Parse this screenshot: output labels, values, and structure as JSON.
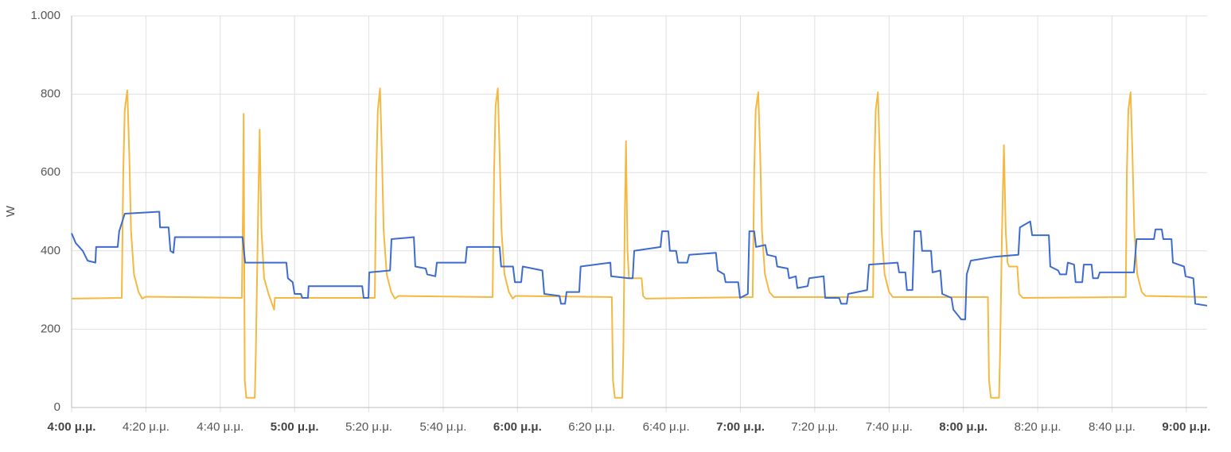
{
  "chart_data": {
    "type": "line",
    "y_label": "W",
    "xlim": [
      0,
      305.6
    ],
    "ylim": [
      0,
      1000
    ],
    "yticks": [
      0,
      200,
      400,
      600,
      800,
      {
        "value": 1000,
        "label": "1.000"
      }
    ],
    "xticks": [
      {
        "value": 0,
        "label": "4:00 μ.μ.",
        "bold": true
      },
      {
        "value": 20,
        "label": "4:20 μ.μ."
      },
      {
        "value": 40,
        "label": "4:40 μ.μ."
      },
      {
        "value": 60,
        "label": "5:00 μ.μ.",
        "bold": true
      },
      {
        "value": 80,
        "label": "5:20 μ.μ."
      },
      {
        "value": 100,
        "label": "5:40 μ.μ."
      },
      {
        "value": 120,
        "label": "6:00 μ.μ.",
        "bold": true
      },
      {
        "value": 140,
        "label": "6:20 μ.μ."
      },
      {
        "value": 160,
        "label": "6:40 μ.μ."
      },
      {
        "value": 180,
        "label": "7:00 μ.μ.",
        "bold": true
      },
      {
        "value": 200,
        "label": "7:20 μ.μ."
      },
      {
        "value": 220,
        "label": "7:40 μ.μ."
      },
      {
        "value": 240,
        "label": "8:00 μ.μ.",
        "bold": true
      },
      {
        "value": 260,
        "label": "8:20 μ.μ."
      },
      {
        "value": 280,
        "label": "8:40 μ.μ."
      },
      {
        "value": 300,
        "label": "9:00 μ.μ.",
        "bold": true
      }
    ],
    "grid": true,
    "series": [
      {
        "color": "#f4b942",
        "x": [
          0,
          13.5,
          13.9,
          14.3,
          15,
          15.5,
          16,
          16.8,
          18,
          19,
          20,
          45.8,
          46.1,
          46.3,
          46.6,
          47,
          49.3,
          49.6,
          50.2,
          50.6,
          51.1,
          51.8,
          53,
          54.5,
          54.7,
          81.6,
          82,
          82.4,
          83,
          83.5,
          84,
          84.8,
          86,
          87,
          88,
          113.3,
          113.7,
          114.1,
          114.7,
          115.2,
          115.7,
          116.5,
          117.7,
          118.7,
          119.5,
          145.4,
          145.7,
          146.2,
          148.2,
          148.5,
          148.9,
          149.2,
          149.6,
          150,
          153.4,
          153.8,
          154.5,
          183.3,
          183.7,
          184.1,
          184.8,
          185.3,
          185.8,
          186.6,
          187.8,
          189,
          215.7,
          216,
          216.4,
          217,
          217.5,
          218,
          218.8,
          220,
          221,
          246.6,
          246.9,
          247.4,
          249.6,
          249.9,
          250.4,
          250.9,
          251.4,
          251.9,
          252.3,
          254.5,
          255,
          256,
          283.7,
          284,
          284.4,
          285,
          285.5,
          286,
          286.8,
          288,
          289,
          305.6
        ],
        "values": [
          278,
          280,
          600,
          760,
          810,
          650,
          450,
          340,
          295,
          278,
          283,
          280,
          500,
          750,
          70,
          25,
          25,
          150,
          500,
          710,
          450,
          330,
          290,
          250,
          280,
          280,
          600,
          760,
          815,
          650,
          450,
          340,
          295,
          278,
          285,
          282,
          600,
          770,
          815,
          650,
          450,
          340,
          295,
          278,
          285,
          282,
          70,
          25,
          25,
          150,
          500,
          680,
          400,
          330,
          330,
          285,
          278,
          282,
          600,
          760,
          805,
          650,
          450,
          340,
          295,
          282,
          282,
          600,
          760,
          805,
          650,
          450,
          340,
          295,
          282,
          282,
          70,
          25,
          25,
          150,
          450,
          670,
          450,
          370,
          360,
          360,
          290,
          280,
          282,
          600,
          760,
          805,
          650,
          450,
          340,
          295,
          285,
          282
        ]
      },
      {
        "color": "#3d6bce",
        "x": [
          0,
          1.1,
          3.0,
          4.3,
          6.4,
          6.6,
          12.4,
          12.8,
          14.3,
          23.6,
          23.8,
          26.1,
          26.6,
          27.4,
          27.8,
          46.0,
          46.7,
          57.8,
          58.2,
          59.5,
          60.0,
          61.7,
          62.1,
          63.6,
          63.8,
          78.2,
          78.6,
          79.9,
          80.1,
          85.7,
          86.1,
          92.1,
          92.5,
          95.3,
          95.7,
          97.9,
          98.3,
          106.0,
          106.4,
          115.2,
          115.6,
          118.8,
          119.3,
          121.0,
          121.4,
          126.7,
          127.2,
          131.3,
          131.7,
          132.8,
          133.2,
          136.6,
          137.0,
          145.0,
          145.2,
          149.9,
          151.0,
          151.4,
          158.5,
          158.9,
          160.6,
          161.0,
          162.7,
          163.2,
          165.7,
          166.2,
          173.4,
          173.9,
          175.6,
          176.0,
          179.4,
          179.9,
          182.0,
          182.4,
          183.7,
          184.2,
          186.7,
          187.2,
          189.5,
          189.9,
          192.7,
          193.1,
          194.9,
          195.3,
          198.1,
          198.5,
          202.4,
          202.8,
          206.6,
          207.1,
          208.6,
          209.0,
          214.1,
          214.6,
          222.3,
          222.7,
          224.4,
          224.8,
          226.3,
          226.8,
          228.5,
          228.9,
          231.3,
          231.7,
          233.8,
          234.3,
          236.8,
          237.3,
          239.0,
          239.4,
          240.5,
          240.9,
          242.0,
          248.4,
          254.8,
          255.2,
          258.0,
          258.5,
          263.0,
          263.4,
          265.5,
          266.0,
          267.7,
          268.1,
          269.8,
          270.2,
          272.0,
          272.4,
          274.5,
          274.9,
          276.2,
          276.7,
          285.9,
          286.6,
          291.3,
          291.7,
          293.4,
          293.8,
          296.0,
          296.4,
          299.4,
          299.8,
          301.9,
          302.4,
          305.6
        ],
        "values": [
          445,
          420,
          400,
          375,
          370,
          410,
          410,
          450,
          495,
          500,
          460,
          460,
          400,
          395,
          435,
          435,
          370,
          370,
          330,
          320,
          290,
          290,
          280,
          280,
          310,
          310,
          280,
          280,
          345,
          350,
          430,
          435,
          360,
          355,
          340,
          335,
          370,
          370,
          410,
          410,
          360,
          360,
          320,
          320,
          360,
          350,
          290,
          285,
          265,
          265,
          295,
          295,
          360,
          370,
          335,
          330,
          330,
          400,
          410,
          450,
          450,
          400,
          400,
          370,
          370,
          390,
          395,
          350,
          340,
          320,
          320,
          280,
          290,
          450,
          450,
          410,
          415,
          390,
          385,
          360,
          355,
          330,
          335,
          305,
          310,
          330,
          335,
          280,
          280,
          265,
          265,
          290,
          300,
          365,
          370,
          345,
          345,
          300,
          300,
          450,
          450,
          400,
          400,
          345,
          350,
          290,
          280,
          250,
          230,
          225,
          225,
          340,
          375,
          385,
          390,
          460,
          475,
          440,
          440,
          360,
          350,
          340,
          340,
          370,
          365,
          320,
          320,
          365,
          365,
          330,
          330,
          345,
          345,
          430,
          430,
          455,
          455,
          430,
          430,
          370,
          360,
          335,
          330,
          265,
          260
        ]
      }
    ]
  }
}
